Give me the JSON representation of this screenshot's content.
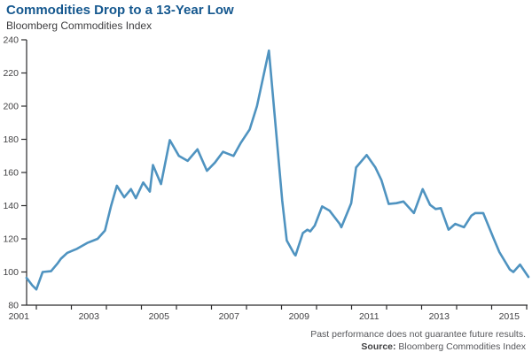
{
  "header": {
    "title": "Commodities Drop to a 13-Year Low",
    "subtitle": "Bloomberg Commodities Index"
  },
  "footer": {
    "disclaimer": "Past performance does not guarantee future results.",
    "source_label": "Source:",
    "source_text": " Bloomberg Commodities Index"
  },
  "colors": {
    "title": "#15588f",
    "line": "#4f93c0",
    "axis": "#2a2a2c",
    "tick_label": "#414042"
  },
  "chart_data": {
    "type": "line",
    "title": "Commodities Drop to a 13-Year Low",
    "subtitle": "Bloomberg Commodities Index",
    "xlabel": "",
    "ylabel": "",
    "grid": false,
    "legend": "none",
    "ylim": [
      80,
      240
    ],
    "y_ticks": [
      80,
      100,
      120,
      140,
      160,
      180,
      200,
      220,
      240
    ],
    "x_axis_year_boundaries": [
      2002,
      2003,
      2004,
      2005,
      2006,
      2007,
      2008,
      2009,
      2010,
      2011,
      2012,
      2013,
      2014,
      2015,
      2016
    ],
    "x_labels": [
      "2001",
      "2003",
      "2005",
      "2007",
      "2009",
      "2011",
      "2013",
      "2015"
    ],
    "x_label_years": [
      2001,
      2003,
      2005,
      2007,
      2009,
      2011,
      2013,
      2015
    ],
    "series": [
      {
        "name": "Bloomberg Commodities Index",
        "points": [
          [
            2001.72,
            96.5
          ],
          [
            2001.88,
            92
          ],
          [
            2002.0,
            89.5
          ],
          [
            2002.18,
            100
          ],
          [
            2002.42,
            100.5
          ],
          [
            2002.6,
            105
          ],
          [
            2002.7,
            108
          ],
          [
            2002.88,
            111.5
          ],
          [
            2003.05,
            113
          ],
          [
            2003.16,
            114
          ],
          [
            2003.45,
            117.5
          ],
          [
            2003.75,
            120
          ],
          [
            2003.96,
            125
          ],
          [
            2004.13,
            139.5
          ],
          [
            2004.3,
            152
          ],
          [
            2004.51,
            145
          ],
          [
            2004.7,
            150
          ],
          [
            2004.84,
            144.5
          ],
          [
            2005.05,
            154
          ],
          [
            2005.24,
            148.5
          ],
          [
            2005.33,
            164.5
          ],
          [
            2005.56,
            153
          ],
          [
            2005.81,
            179.5
          ],
          [
            2006.07,
            170
          ],
          [
            2006.32,
            167
          ],
          [
            2006.6,
            174
          ],
          [
            2006.87,
            161
          ],
          [
            2007.1,
            166
          ],
          [
            2007.33,
            172.5
          ],
          [
            2007.63,
            170
          ],
          [
            2007.84,
            178
          ],
          [
            2008.09,
            186
          ],
          [
            2008.3,
            200
          ],
          [
            2008.64,
            233.5
          ],
          [
            2009.02,
            143
          ],
          [
            2009.15,
            119
          ],
          [
            2009.36,
            111
          ],
          [
            2009.4,
            110
          ],
          [
            2009.61,
            123.5
          ],
          [
            2009.74,
            125.5
          ],
          [
            2009.82,
            124.5
          ],
          [
            2009.95,
            128
          ],
          [
            2010.16,
            139.5
          ],
          [
            2010.37,
            137
          ],
          [
            2010.66,
            129
          ],
          [
            2010.71,
            127
          ],
          [
            2010.99,
            141.5
          ],
          [
            2011.13,
            163
          ],
          [
            2011.43,
            170.5
          ],
          [
            2011.68,
            163
          ],
          [
            2011.85,
            155.5
          ],
          [
            2012.06,
            141
          ],
          [
            2012.28,
            141.5
          ],
          [
            2012.48,
            142.5
          ],
          [
            2012.78,
            135.5
          ],
          [
            2013.03,
            150
          ],
          [
            2013.24,
            140.5
          ],
          [
            2013.4,
            138
          ],
          [
            2013.55,
            138.5
          ],
          [
            2013.77,
            125.5
          ],
          [
            2013.96,
            129
          ],
          [
            2014.21,
            127
          ],
          [
            2014.42,
            134
          ],
          [
            2014.53,
            135.5
          ],
          [
            2014.76,
            135.5
          ],
          [
            2015.06,
            120
          ],
          [
            2015.22,
            112
          ],
          [
            2015.52,
            101.5
          ],
          [
            2015.62,
            100
          ],
          [
            2015.81,
            104.5
          ],
          [
            2016.05,
            97
          ]
        ]
      }
    ]
  }
}
